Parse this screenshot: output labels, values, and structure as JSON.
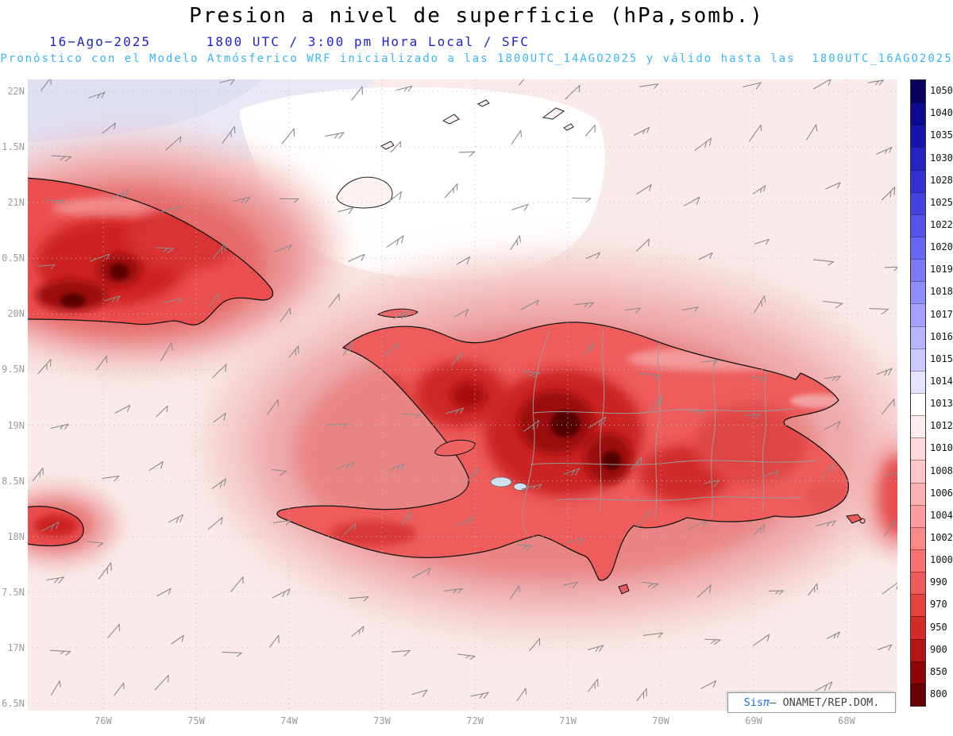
{
  "header": {
    "title": "Presion a nivel de superficie (hPa,somb.)",
    "date_line": "16−Ago−2025      1800 UTC / 3:00 pm Hora Local / SFC",
    "subtitle": "Pronóstico con el Modelo Atmósferico WRF inicializado a las 1800UTC_14AGO2025 y válido hasta las  1800UTC_16AGO2025"
  },
  "watermark": {
    "brand": "Sis",
    "pi": "π",
    "separator": "– ",
    "org": "ONAMET/REP.DOM."
  },
  "chart_data": {
    "type": "heatmap",
    "title": "Presion a nivel de superficie (hPa,somb.)",
    "units": "hPa",
    "valid_time": "16−Ago−2025 1800 UTC / 3:00 pm Hora Local / SFC",
    "model_run": "WRF inicializado a las 1800UTC_14AGO2025, válido hasta las 1800UTC_16AGO2025",
    "x_axis": {
      "label": "longitude",
      "ticks": [
        "76W",
        "75W",
        "74W",
        "73W",
        "72W",
        "71W",
        "70W",
        "69W",
        "68W"
      ]
    },
    "y_axis": {
      "label": "latitude",
      "ticks": [
        "22N",
        "1.5N",
        "21N",
        "0.5N",
        "20N",
        "9.5N",
        "19N",
        "8.5N",
        "18N",
        "7.5N",
        "17N",
        "6.5N"
      ]
    },
    "colorbar_levels": [
      {
        "value": "1050",
        "color": "#06005c"
      },
      {
        "value": "1040",
        "color": "#0c0a90"
      },
      {
        "value": "1035",
        "color": "#1616ae"
      },
      {
        "value": "1030",
        "color": "#2323c4"
      },
      {
        "value": "1028",
        "color": "#3232d4"
      },
      {
        "value": "1025",
        "color": "#4242e2"
      },
      {
        "value": "1022",
        "color": "#5454ec"
      },
      {
        "value": "1020",
        "color": "#6666f4"
      },
      {
        "value": "1019",
        "color": "#7a7af8"
      },
      {
        "value": "1018",
        "color": "#8e8efc"
      },
      {
        "value": "1017",
        "color": "#a2a2fe"
      },
      {
        "value": "1016",
        "color": "#b6b6ff"
      },
      {
        "value": "1015",
        "color": "#cacaff"
      },
      {
        "value": "1014",
        "color": "#e4e4ff"
      },
      {
        "value": "1013",
        "color": "#ffffff"
      },
      {
        "value": "1012",
        "color": "#ffecec"
      },
      {
        "value": "1010",
        "color": "#ffdada"
      },
      {
        "value": "1008",
        "color": "#fec6c6"
      },
      {
        "value": "1006",
        "color": "#fdb2b2"
      },
      {
        "value": "1004",
        "color": "#fb9d9d"
      },
      {
        "value": "1002",
        "color": "#f98888"
      },
      {
        "value": "1000",
        "color": "#f67272"
      },
      {
        "value": "990",
        "color": "#f15a5a"
      },
      {
        "value": "970",
        "color": "#e64242"
      },
      {
        "value": "950",
        "color": "#d62a2a"
      },
      {
        "value": "900",
        "color": "#b51515"
      },
      {
        "value": "850",
        "color": "#8f0505"
      },
      {
        "value": "800",
        "color": "#670000"
      }
    ]
  }
}
